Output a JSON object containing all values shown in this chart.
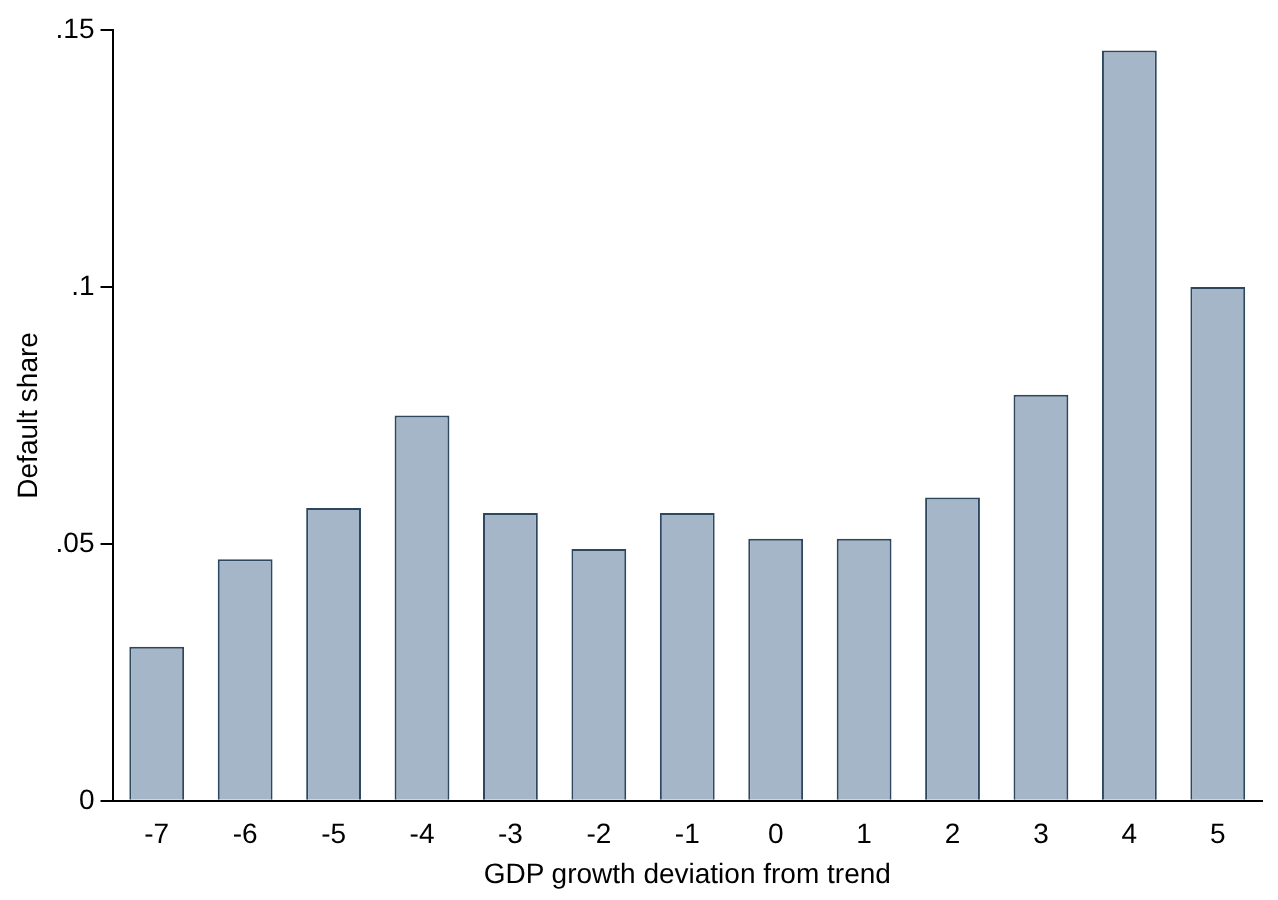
{
  "chart_data": {
    "type": "bar",
    "xlabel": "GDP growth deviation from trend",
    "ylabel": "Default share",
    "categories": [
      "-7",
      "-6",
      "-5",
      "-4",
      "-3",
      "-2",
      "-1",
      "0",
      "1",
      "2",
      "3",
      "4",
      "5"
    ],
    "values": [
      0.03,
      0.047,
      0.057,
      0.075,
      0.056,
      0.049,
      0.056,
      0.051,
      0.051,
      0.059,
      0.079,
      0.146,
      0.1
    ],
    "color": "#a5b6c8",
    "ylim": [
      0,
      0.15
    ],
    "yticks": [
      {
        "value": 0,
        "label": "0"
      },
      {
        "value": 0.05,
        "label": ".05"
      },
      {
        "value": 0.1,
        "label": ".1"
      },
      {
        "value": 0.15,
        "label": ".15"
      }
    ],
    "grid": false,
    "legend": false
  }
}
